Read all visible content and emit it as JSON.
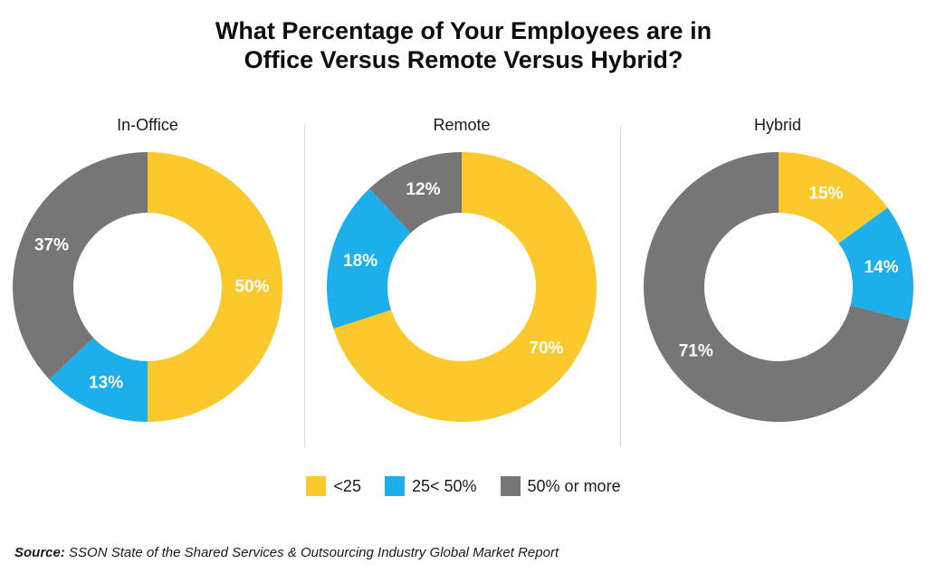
{
  "chart_data": {
    "type": "pie",
    "title": [
      "What Percentage of Your Employees are in",
      "Office Versus Remote Versus Hybrid?"
    ],
    "legend": [
      {
        "label": "<25",
        "color": "#FCC92C"
      },
      {
        "label": "25< 50%",
        "color": "#1CAFEC"
      },
      {
        "label": "50% or more",
        "color": "#767676"
      }
    ],
    "charts": [
      {
        "name": "In-Office",
        "values": [
          50,
          13,
          37
        ],
        "labels": [
          "50%",
          "13%",
          "37%"
        ]
      },
      {
        "name": "Remote",
        "values": [
          70,
          18,
          12
        ],
        "labels": [
          "70%",
          "18%",
          "12%"
        ]
      },
      {
        "name": "Hybrid",
        "values": [
          15,
          14,
          71
        ],
        "labels": [
          "15%",
          "14%",
          "71%"
        ]
      }
    ]
  },
  "source": {
    "prefix": "Source:",
    "text": " SSON State of the Shared Services & Outsourcing Industry Global Market Report"
  }
}
